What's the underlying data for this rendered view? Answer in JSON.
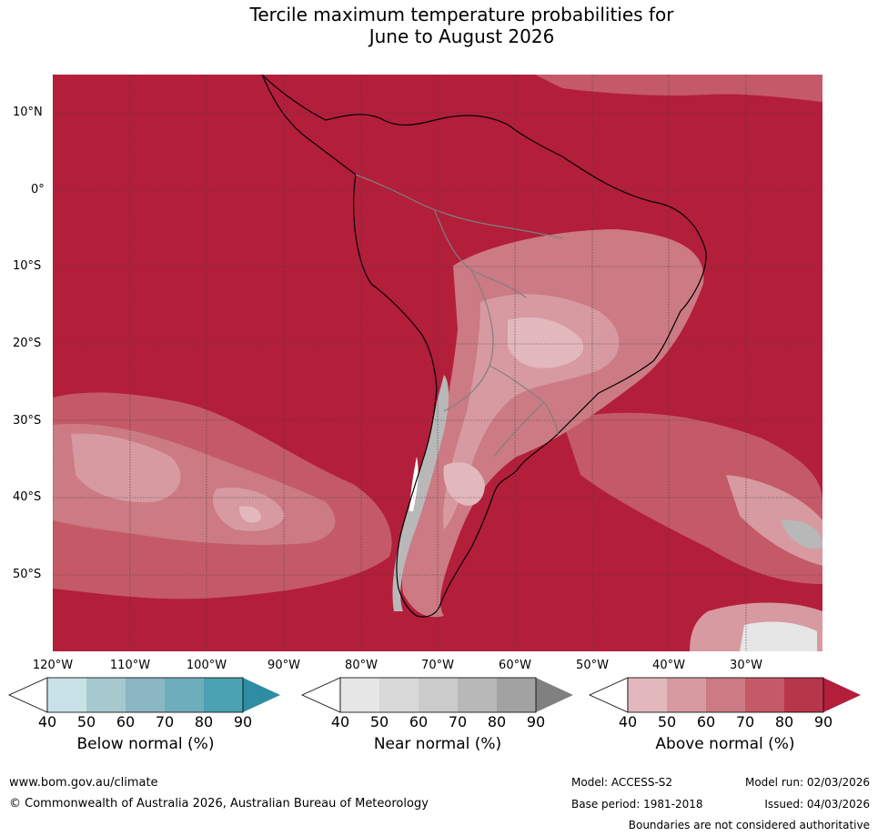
{
  "title": {
    "line1": "Tercile maximum temperature probabilities for",
    "line2": "June to August 2026"
  },
  "axes": {
    "lat_ticks": [
      "10°N",
      "0°",
      "10°S",
      "20°S",
      "30°S",
      "40°S",
      "50°S"
    ],
    "lon_ticks": [
      "120°W",
      "110°W",
      "100°W",
      "90°W",
      "80°W",
      "70°W",
      "60°W",
      "50°W",
      "40°W",
      "30°W"
    ]
  },
  "colorbars": [
    {
      "label": "Below normal (%)",
      "ticks": [
        "40",
        "50",
        "60",
        "70",
        "80",
        "90"
      ],
      "colors": [
        "#ffffff",
        "#c9e2e8",
        "#a6c9d0",
        "#8bb6c3",
        "#6eaebc",
        "#4aa2b3",
        "#2e8da2"
      ]
    },
    {
      "label": "Near normal (%)",
      "ticks": [
        "40",
        "50",
        "60",
        "70",
        "80",
        "90"
      ],
      "colors": [
        "#ffffff",
        "#e6e6e6",
        "#d9d9d9",
        "#cbcbcb",
        "#b8b8b8",
        "#a2a2a2",
        "#808080"
      ]
    },
    {
      "label": "Above normal (%)",
      "ticks": [
        "40",
        "50",
        "60",
        "70",
        "80",
        "90"
      ],
      "colors": [
        "#ffffff",
        "#e2b8bd",
        "#d79aa1",
        "#cc7a83",
        "#c45a67",
        "#b8364a",
        "#b31e3b"
      ]
    }
  ],
  "footer": {
    "website": "www.bom.gov.au/climate",
    "copyright": "© Commonwealth of Australia 2026, Australian Bureau of Meteorology",
    "model": "Model: ACCESS-S2",
    "model_run": "Model run: 02/03/2026",
    "base_period": "Base period: 1981-2018",
    "issued": "Issued: 04/03/2026",
    "disclaimer": "Boundaries are not considered authoritative"
  },
  "colors": {
    "above_90": "#b31e3b",
    "above_80": "#b8364a",
    "above_70": "#c45a67",
    "above_60": "#cc7a83",
    "above_50": "#d79aa1",
    "above_40": "#e2b8bd",
    "near_70": "#b8b8b8",
    "near_50": "#d9d9d9",
    "grid": "#404040"
  }
}
